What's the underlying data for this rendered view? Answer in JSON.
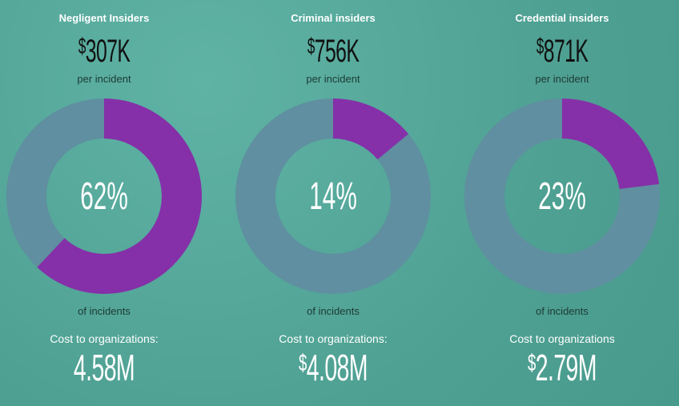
{
  "colors": {
    "purple": "#8530a8",
    "ring": "#5f8fa0"
  },
  "chart_data": {
    "type": "pie",
    "items": [
      {
        "title": "Negligent Insiders",
        "currency": "$",
        "price": "307K",
        "per": "per incident",
        "percent": 62,
        "percent_label": "62%",
        "of": "of incidents",
        "cost_label": "Cost to organizations:",
        "cost_currency": "",
        "cost": "4.58M"
      },
      {
        "title": "Criminal insiders",
        "currency": "$",
        "price": "756K",
        "per": "per incident",
        "percent": 14,
        "percent_label": "14%",
        "of": "of incidents",
        "cost_label": "Cost to organizations:",
        "cost_currency": "$",
        "cost": "4.08M"
      },
      {
        "title": "Credential insiders",
        "currency": "$",
        "price": "871K",
        "per": "per incident",
        "percent": 23,
        "percent_label": "23%",
        "of": "of incidents",
        "cost_label": "Cost to organizations",
        "cost_currency": "$",
        "cost": "2.79M"
      }
    ]
  }
}
